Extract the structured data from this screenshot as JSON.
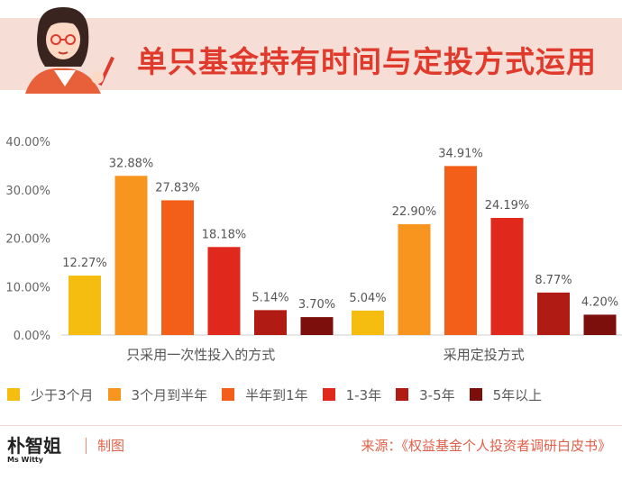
{
  "header": {
    "title": "单只基金持有时间与定投方式运用"
  },
  "chart_data": {
    "type": "bar",
    "title": "单只基金持有时间与定投方式运用",
    "xlabel": "",
    "ylabel": "",
    "ylim": [
      0,
      40
    ],
    "yticks": [
      "0.00%",
      "10.00%",
      "20.00%",
      "30.00%",
      "40.00%"
    ],
    "categories": [
      "只采用一次性投入的方式",
      "采用定投方式"
    ],
    "series": [
      {
        "name": "少于3个月",
        "color": "#f5bd10",
        "values": [
          12.27,
          5.04
        ],
        "labels": [
          "12.27%",
          "5.04%"
        ]
      },
      {
        "name": "3个月到半年",
        "color": "#f7951e",
        "values": [
          32.88,
          22.9
        ],
        "labels": [
          "32.88%",
          "22.90%"
        ]
      },
      {
        "name": "半年到1年",
        "color": "#f35e18",
        "values": [
          27.83,
          34.91
        ],
        "labels": [
          "27.83%",
          "34.91%"
        ]
      },
      {
        "name": "1-3年",
        "color": "#e0281d",
        "values": [
          18.18,
          24.19
        ],
        "labels": [
          "18.18%",
          "24.19%"
        ]
      },
      {
        "name": "3-5年",
        "color": "#b01c14",
        "values": [
          5.14,
          8.77
        ],
        "labels": [
          "5.14%",
          "8.77%"
        ]
      },
      {
        "name": "5年以上",
        "color": "#7c0f0b",
        "values": [
          3.7,
          4.2
        ],
        "labels": [
          "3.70%",
          "4.20%"
        ]
      }
    ],
    "legend_position": "bottom"
  },
  "footer": {
    "logo_text": "Ms Witty",
    "logo_mark": "朴智姐",
    "credit": "制图",
    "source": "来源：《权益基金个人投资者调研白皮书》"
  }
}
